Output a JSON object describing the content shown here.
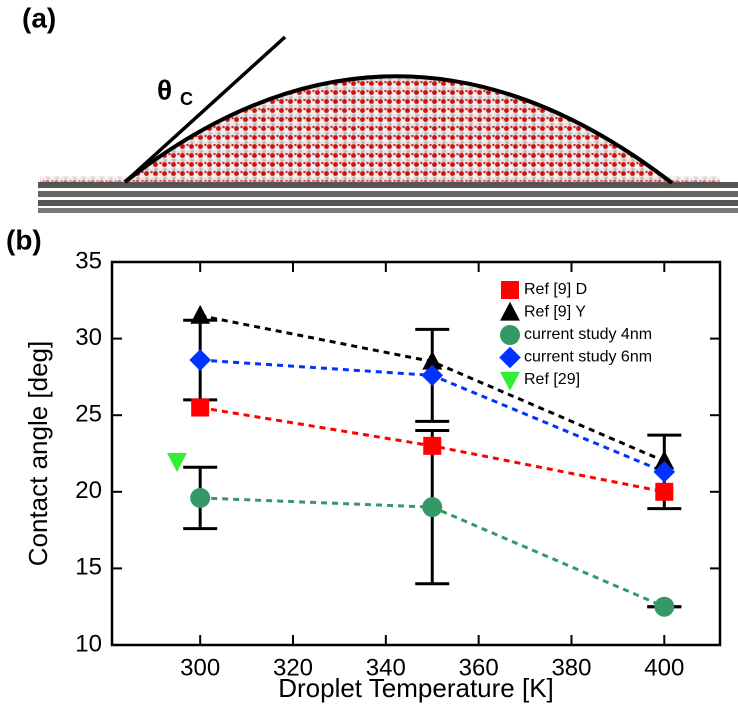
{
  "figure": {
    "panel_a_label": "(a)",
    "panel_b_label": "(b)",
    "theta_symbol": "θ",
    "theta_subscript": "C"
  },
  "chart_data": {
    "type": "scatter",
    "x_label": "Droplet Temperature [K]",
    "y_label": "Contact angle [deg]",
    "xlim": [
      281,
      412
    ],
    "xticks": [
      300,
      320,
      340,
      360,
      380,
      400
    ],
    "ylim": [
      10,
      35
    ],
    "yticks": [
      10,
      15,
      20,
      25,
      30,
      35
    ],
    "legend": "upper right",
    "series": [
      {
        "name": "Ref [9] D",
        "color": "#ff0000",
        "marker": "square",
        "dashed": true,
        "x": [
          300,
          350,
          400
        ],
        "values": [
          25.5,
          23,
          20
        ]
      },
      {
        "name": "Ref [9] Y",
        "color": "#000000",
        "marker": "triangle-up",
        "dashed": true,
        "x": [
          300,
          350,
          400
        ],
        "values": [
          31.5,
          28.5,
          22
        ]
      },
      {
        "name": "current study 4nm",
        "color": "#339966",
        "marker": "circle",
        "dashed": true,
        "x": [
          300,
          350,
          400
        ],
        "values": [
          19.6,
          19,
          12.5
        ],
        "errors": [
          2,
          5,
          0
        ]
      },
      {
        "name": "current study 6nm",
        "color": "#0033ff",
        "marker": "diamond",
        "dashed": true,
        "x": [
          300,
          350,
          400
        ],
        "values": [
          28.6,
          27.6,
          21.3
        ],
        "errors": [
          2.6,
          3,
          2.4
        ]
      },
      {
        "name": "Ref [29]",
        "color": "#33ee33",
        "marker": "triangle-down",
        "dashed": false,
        "x": [
          295
        ],
        "values": [
          22
        ]
      }
    ]
  }
}
